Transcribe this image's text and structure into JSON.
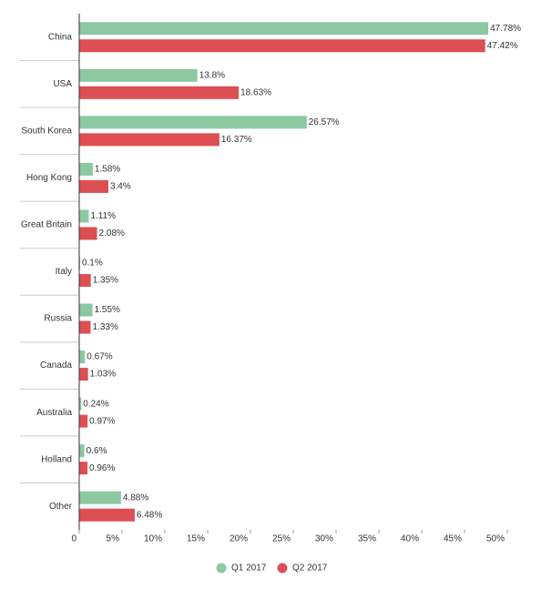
{
  "chart_data": {
    "type": "hbar",
    "categories": [
      "China",
      "USA",
      "South Korea",
      "Hong Kong",
      "Great Britain",
      "Italy",
      "Russia",
      "Canada",
      "Australia",
      "Holland",
      "Other"
    ],
    "series": [
      {
        "name": "Q1 2017",
        "color": "#8cc8a2",
        "values": [
          47.78,
          13.8,
          26.57,
          1.58,
          1.11,
          0.1,
          1.55,
          0.67,
          0.24,
          0.6,
          4.88
        ],
        "value_labels": [
          "47.78%",
          "13.8%",
          "26.57%",
          "1.58%",
          "1.11%",
          "0.1%",
          "1.55%",
          "0.67%",
          "0.24%",
          "0.6%",
          "4.88%"
        ]
      },
      {
        "name": "Q2 2017",
        "color": "#dd4f52",
        "values": [
          47.42,
          18.63,
          16.37,
          3.4,
          2.08,
          1.35,
          1.33,
          1.03,
          0.97,
          0.96,
          6.48
        ],
        "value_labels": [
          "47.42%",
          "18.63%",
          "16.37%",
          "3.4%",
          "2.08%",
          "1.35%",
          "1.33%",
          "1.03%",
          "0.97%",
          "0.96%",
          "6.48%"
        ]
      }
    ],
    "xlim": [
      0,
      50
    ],
    "xticks": [
      0,
      {
        "value": 5,
        "label": "5%"
      },
      {
        "value": 10,
        "label": "10%"
      },
      {
        "value": 15,
        "label": "15%"
      },
      {
        "value": 20,
        "label": "20%"
      },
      {
        "value": 25,
        "label": "25%"
      },
      {
        "value": 30,
        "label": "30%"
      },
      {
        "value": 35,
        "label": "35%"
      },
      {
        "value": 40,
        "label": "40%"
      },
      {
        "value": 45,
        "label": "45%"
      },
      {
        "value": 50,
        "label": "50%"
      }
    ],
    "legend": "bottom"
  }
}
